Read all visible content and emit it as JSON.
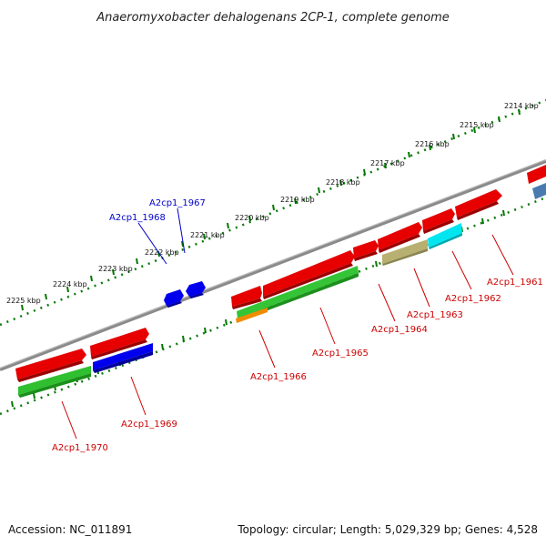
{
  "title": "Anaeromyxobacter dehalogenans 2CP-1, complete genome",
  "footer": {
    "accession": "Accession: NC_011891",
    "summary": "Topology: circular; Length: 5,029,329 bp; Genes: 4,528"
  },
  "ticks": [
    {
      "label": "2214 kbp"
    },
    {
      "label": "2215 kbp"
    },
    {
      "label": "2216 kbp"
    },
    {
      "label": "2217 kbp"
    },
    {
      "label": "2218 kbp"
    },
    {
      "label": "2219 kbp"
    },
    {
      "label": "2220 kbp"
    },
    {
      "label": "2221 kbp"
    },
    {
      "label": "2222 kbp"
    },
    {
      "label": "2223 kbp"
    },
    {
      "label": "2224 kbp"
    },
    {
      "label": "2225 kbp"
    }
  ],
  "genes": [
    {
      "label": "A2cp1_1961",
      "strand": "forward",
      "color": "#e00000"
    },
    {
      "label": "A2cp1_1962",
      "strand": "forward",
      "color": "#e00000"
    },
    {
      "label": "A2cp1_1963",
      "strand": "forward",
      "color": "#e00000"
    },
    {
      "label": "A2cp1_1964",
      "strand": "forward",
      "color": "#e00000"
    },
    {
      "label": "A2cp1_1965",
      "strand": "forward",
      "color": "#e00000"
    },
    {
      "label": "A2cp1_1966",
      "strand": "forward",
      "color": "#e00000"
    },
    {
      "label": "A2cp1_1967",
      "strand": "reverse",
      "color": "#0000cc"
    },
    {
      "label": "A2cp1_1968",
      "strand": "reverse",
      "color": "#0000cc"
    },
    {
      "label": "A2cp1_1969",
      "strand": "forward",
      "color": "#e00000"
    },
    {
      "label": "A2cp1_1970",
      "strand": "forward",
      "color": "#e00000"
    }
  ],
  "colors": {
    "backbone": "#808080",
    "forward_gene": "#e00000",
    "reverse_gene": "#0000ee",
    "forward_label": "#cc0000",
    "reverse_label": "#0000cc",
    "ticks": "#007700",
    "cog_green": "#2ab52a",
    "cog_blue": "#0000dd",
    "cog_cyan": "#00e6f0",
    "cog_khaki": "#b8b070",
    "cog_orange": "#f08c00",
    "cog_steelblue": "#4a7ab0"
  }
}
